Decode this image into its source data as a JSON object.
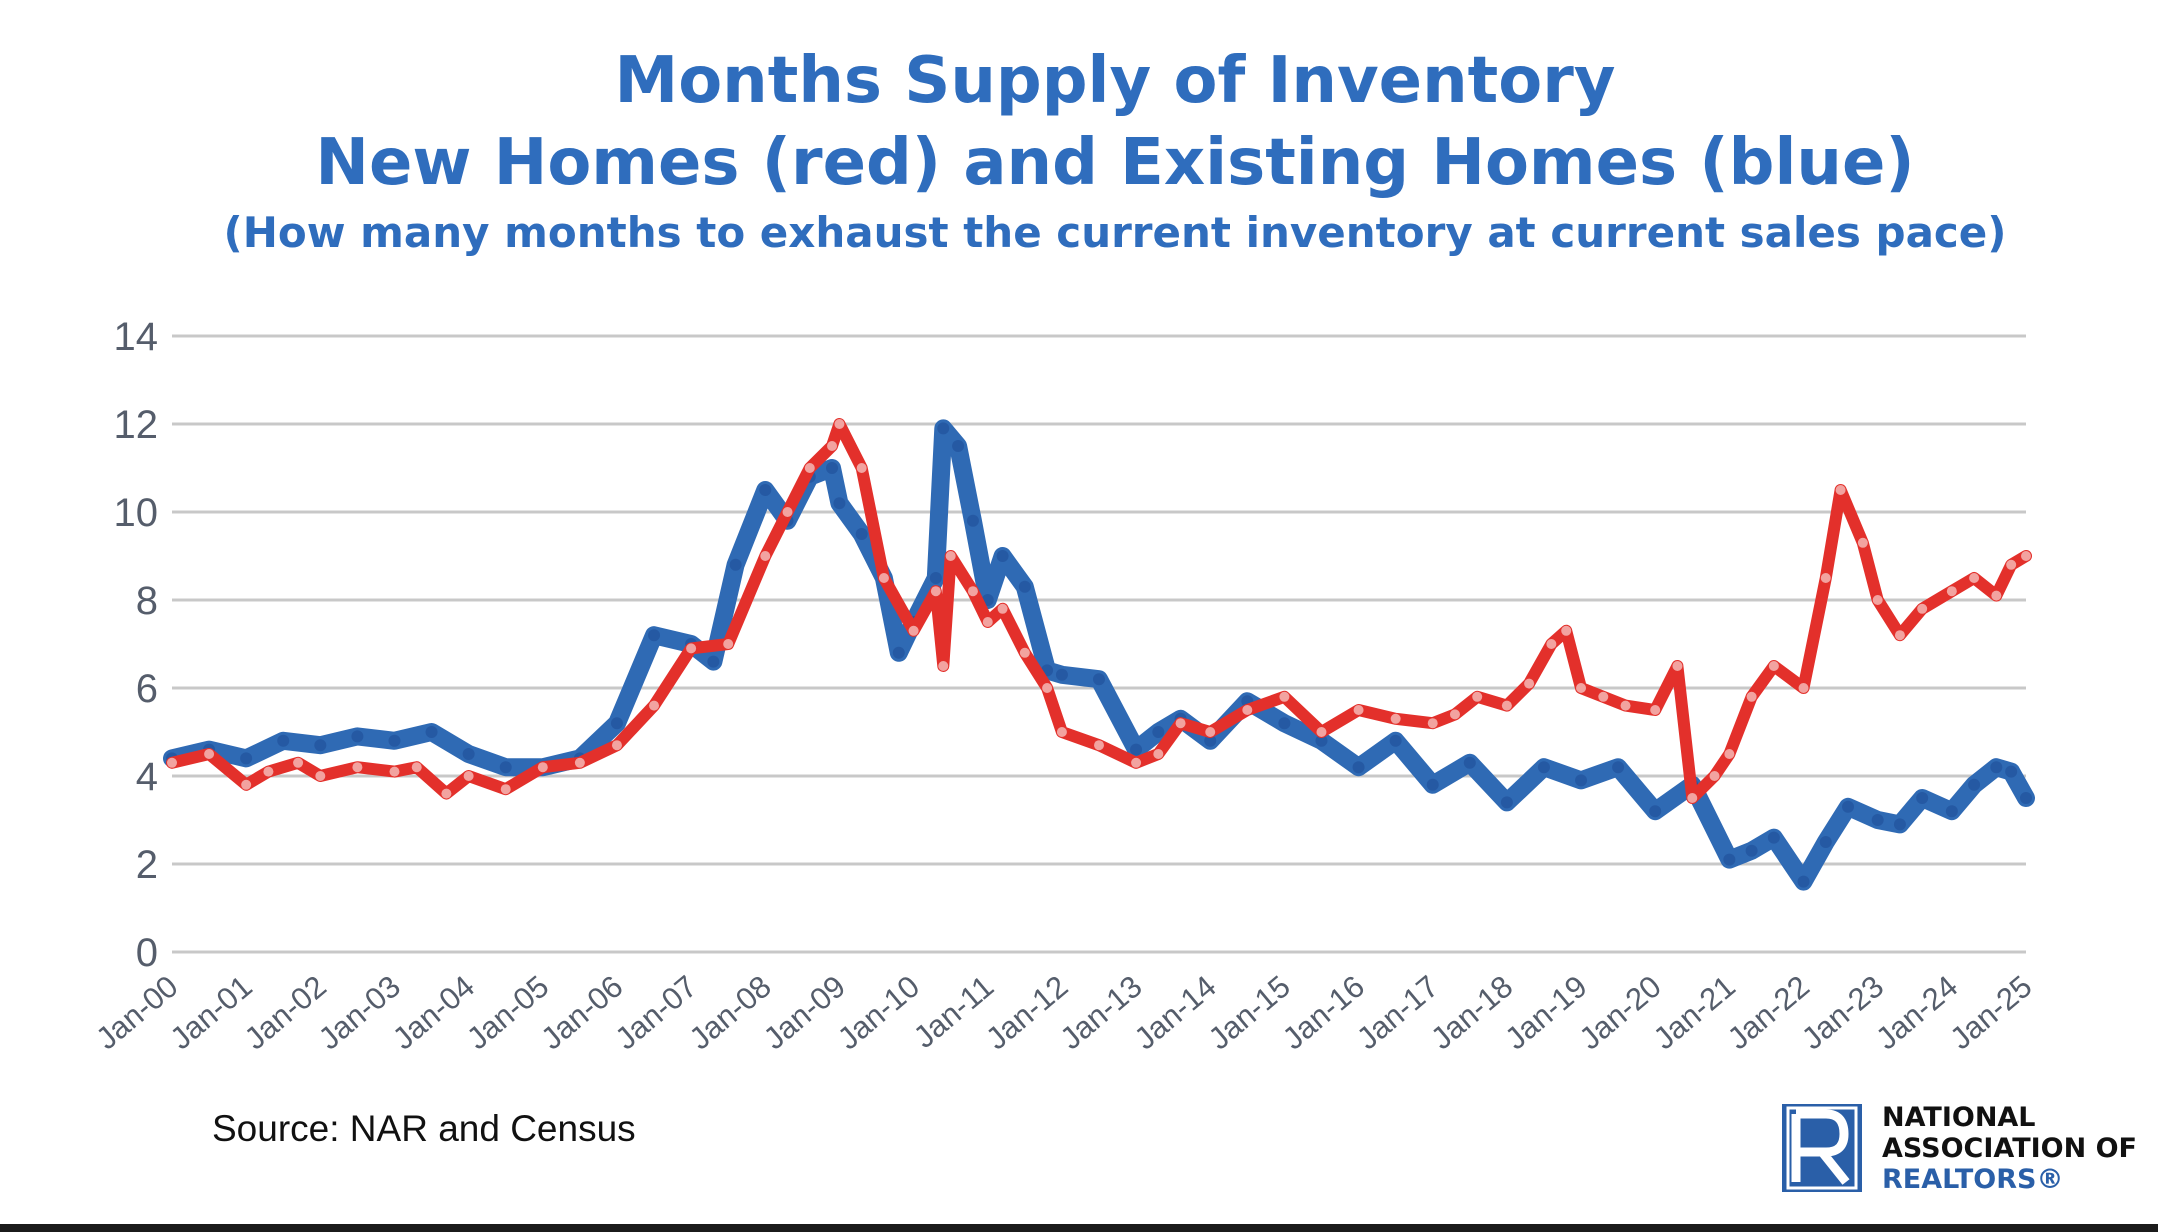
{
  "header": {
    "title_line1": "Months Supply of Inventory",
    "title_line2": "New Homes (red) and Existing Homes (blue)",
    "subtitle": "(How many months to exhaust the current inventory at current sales pace)"
  },
  "footer": {
    "source": "Source: NAR and Census",
    "logo_line1": "NATIONAL",
    "logo_line2": "ASSOCIATION OF",
    "logo_line3": "REALTORS®"
  },
  "chart_data": {
    "type": "line",
    "title": "Months Supply of Inventory",
    "subtitle": "New Homes (red) and Existing Homes (blue)",
    "ylim": [
      0,
      14
    ],
    "yticks": [
      0,
      2,
      4,
      6,
      8,
      10,
      12,
      14
    ],
    "xlim": [
      2000,
      2025
    ],
    "xtick_labels": [
      "Jan-00",
      "Jan-01",
      "Jan-02",
      "Jan-03",
      "Jan-04",
      "Jan-05",
      "Jan-06",
      "Jan-07",
      "Jan-08",
      "Jan-09",
      "Jan-10",
      "Jan-11",
      "Jan-12",
      "Jan-13",
      "Jan-14",
      "Jan-15",
      "Jan-16",
      "Jan-17",
      "Jan-18",
      "Jan-19",
      "Jan-20",
      "Jan-21",
      "Jan-22",
      "Jan-23",
      "Jan-24",
      "Jan-25"
    ],
    "grid": true,
    "legend": "none",
    "colors": {
      "new_homes": "#e3302b",
      "new_homes_marker": "#f2a3a0",
      "existing_homes": "#2f6ab4",
      "grid": "#c8c8c8",
      "axis_text": "#555d6b"
    },
    "series": [
      {
        "name": "New Homes (red)",
        "x": [
          2000,
          2000.5,
          2001,
          2001.3,
          2001.7,
          2002,
          2002.5,
          2003,
          2003.3,
          2003.7,
          2004,
          2004.5,
          2005,
          2005.5,
          2006,
          2006.5,
          2007,
          2007.5,
          2008,
          2008.3,
          2008.6,
          2008.9,
          2009,
          2009.3,
          2009.6,
          2010,
          2010.3,
          2010.4,
          2010.5,
          2010.8,
          2011,
          2011.2,
          2011.5,
          2011.8,
          2012,
          2012.5,
          2013,
          2013.3,
          2013.6,
          2014,
          2014.5,
          2015,
          2015.5,
          2016,
          2016.5,
          2017,
          2017.3,
          2017.6,
          2018,
          2018.3,
          2018.6,
          2018.8,
          2019,
          2019.3,
          2019.6,
          2020,
          2020.3,
          2020.5,
          2020.8,
          2021,
          2021.3,
          2021.6,
          2022,
          2022.3,
          2022.5,
          2022.8,
          2023,
          2023.3,
          2023.6,
          2024,
          2024.3,
          2024.6,
          2024.8,
          2025
        ],
        "values": [
          4.3,
          4.5,
          3.8,
          4.1,
          4.3,
          4.0,
          4.2,
          4.1,
          4.2,
          3.6,
          4.0,
          3.7,
          4.2,
          4.3,
          4.7,
          5.6,
          6.9,
          7.0,
          9.0,
          10.0,
          11.0,
          11.5,
          12.0,
          11.0,
          8.5,
          7.3,
          8.2,
          6.5,
          9.0,
          8.2,
          7.5,
          7.8,
          6.8,
          6.0,
          5.0,
          4.7,
          4.3,
          4.5,
          5.2,
          5.0,
          5.5,
          5.8,
          5.0,
          5.5,
          5.3,
          5.2,
          5.4,
          5.8,
          5.6,
          6.1,
          7.0,
          7.3,
          6.0,
          5.8,
          5.6,
          5.5,
          6.5,
          3.5,
          4.0,
          4.5,
          5.8,
          6.5,
          6.0,
          8.5,
          10.5,
          9.3,
          8.0,
          7.2,
          7.8,
          8.2,
          8.5,
          8.1,
          8.8,
          9.0
        ]
      },
      {
        "name": "Existing Homes (blue)",
        "x": [
          2000,
          2000.5,
          2001,
          2001.5,
          2002,
          2002.5,
          2003,
          2003.5,
          2004,
          2004.5,
          2005,
          2005.5,
          2006,
          2006.5,
          2007,
          2007.3,
          2007.6,
          2008,
          2008.3,
          2008.6,
          2008.9,
          2009,
          2009.3,
          2009.6,
          2009.8,
          2010,
          2010.3,
          2010.4,
          2010.6,
          2010.8,
          2011,
          2011.2,
          2011.5,
          2011.8,
          2012,
          2012.5,
          2013,
          2013.3,
          2013.6,
          2014,
          2014.5,
          2015,
          2015.5,
          2016,
          2016.5,
          2017,
          2017.5,
          2018,
          2018.5,
          2019,
          2019.5,
          2020,
          2020.5,
          2021,
          2021.3,
          2021.6,
          2022,
          2022.3,
          2022.6,
          2023,
          2023.3,
          2023.6,
          2024,
          2024.3,
          2024.6,
          2024.8,
          2025
        ],
        "values": [
          4.4,
          4.6,
          4.4,
          4.8,
          4.7,
          4.9,
          4.8,
          5.0,
          4.5,
          4.2,
          4.2,
          4.4,
          5.2,
          7.2,
          7.0,
          6.6,
          8.8,
          10.5,
          9.8,
          10.8,
          11.0,
          10.2,
          9.5,
          8.5,
          6.8,
          7.5,
          8.5,
          11.9,
          11.5,
          9.8,
          8.0,
          9.0,
          8.3,
          6.4,
          6.3,
          6.2,
          4.6,
          5.0,
          5.3,
          4.8,
          5.7,
          5.2,
          4.8,
          4.2,
          4.8,
          3.8,
          4.3,
          3.4,
          4.2,
          3.9,
          4.2,
          3.2,
          3.8,
          2.1,
          2.3,
          2.6,
          1.6,
          2.5,
          3.3,
          3.0,
          2.9,
          3.5,
          3.2,
          3.8,
          4.2,
          4.1,
          3.5
        ]
      }
    ]
  }
}
